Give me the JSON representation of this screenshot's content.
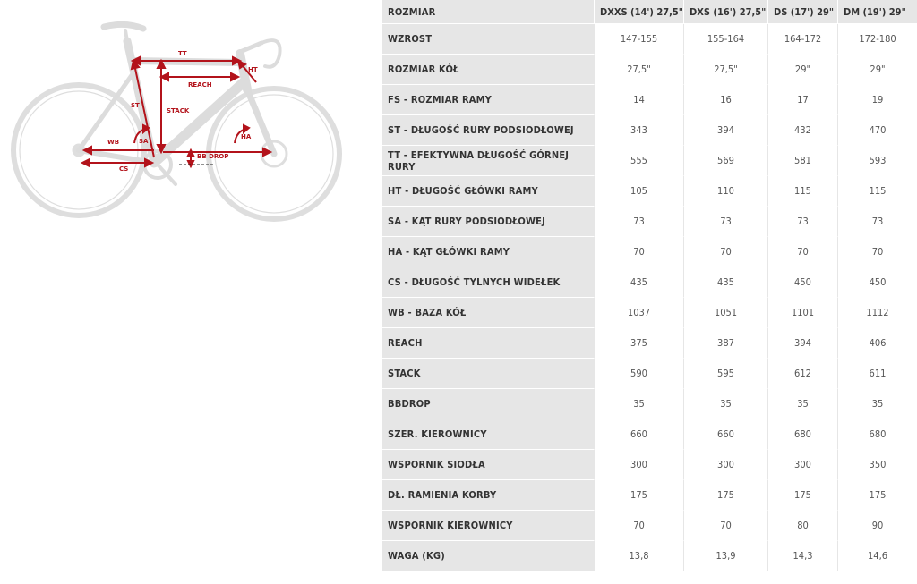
{
  "diagram": {
    "accent_color": "#b3131b",
    "labels": {
      "tt": "TT",
      "ht": "HT",
      "reach": "REACH",
      "st": "ST",
      "stack": "STACK",
      "wb": "WB",
      "sa": "SA",
      "ha": "HA",
      "bb_drop": "BB DROP",
      "cs": "CS"
    }
  },
  "table": {
    "header_label": "ROZMIAR",
    "sizes": [
      "DXXS (14') 27,5\"",
      "DXS (16') 27,5\"",
      "DS (17') 29\"",
      "DM (19') 29\""
    ],
    "rows": [
      {
        "label": "WZROST",
        "values": [
          "147-155",
          "155-164",
          "164-172",
          "172-180"
        ]
      },
      {
        "label": "ROZMIAR KÓŁ",
        "values": [
          "27,5\"",
          "27,5\"",
          "29\"",
          "29\""
        ]
      },
      {
        "label": "FS - ROZMIAR RAMY",
        "values": [
          "14",
          "16",
          "17",
          "19"
        ]
      },
      {
        "label": "ST - DŁUGOŚĆ RURY PODSIODŁOWEJ",
        "values": [
          "343",
          "394",
          "432",
          "470"
        ]
      },
      {
        "label": "TT - EFEKTYWNA DŁUGOŚĆ GÓRNEJ RURY",
        "values": [
          "555",
          "569",
          "581",
          "593"
        ]
      },
      {
        "label": "HT - DŁUGOŚĆ GŁÓWKI RAMY",
        "values": [
          "105",
          "110",
          "115",
          "115"
        ]
      },
      {
        "label": "SA - KĄT RURY PODSIODŁOWEJ",
        "values": [
          "73",
          "73",
          "73",
          "73"
        ]
      },
      {
        "label": "HA - KĄT GŁÓWKI RAMY",
        "values": [
          "70",
          "70",
          "70",
          "70"
        ]
      },
      {
        "label": "CS - DŁUGOŚĆ TYLNYCH WIDEŁEK",
        "values": [
          "435",
          "435",
          "450",
          "450"
        ]
      },
      {
        "label": "WB - BAZA KÓŁ",
        "values": [
          "1037",
          "1051",
          "1101",
          "1112"
        ]
      },
      {
        "label": "REACH",
        "values": [
          "375",
          "387",
          "394",
          "406"
        ]
      },
      {
        "label": "STACK",
        "values": [
          "590",
          "595",
          "612",
          "611"
        ]
      },
      {
        "label": "BBDROP",
        "values": [
          "35",
          "35",
          "35",
          "35"
        ]
      },
      {
        "label": "SZER. KIEROWNICY",
        "values": [
          "660",
          "660",
          "680",
          "680"
        ]
      },
      {
        "label": "WSPORNIK SIODŁA",
        "values": [
          "300",
          "300",
          "300",
          "350"
        ]
      },
      {
        "label": "DŁ. RAMIENIA KORBY",
        "values": [
          "175",
          "175",
          "175",
          "175"
        ]
      },
      {
        "label": "WSPORNIK KIEROWNICY",
        "values": [
          "70",
          "70",
          "80",
          "90"
        ]
      },
      {
        "label": "WAGA (KG)",
        "values": [
          "13,8",
          "13,9",
          "14,3",
          "14,6"
        ]
      }
    ]
  }
}
